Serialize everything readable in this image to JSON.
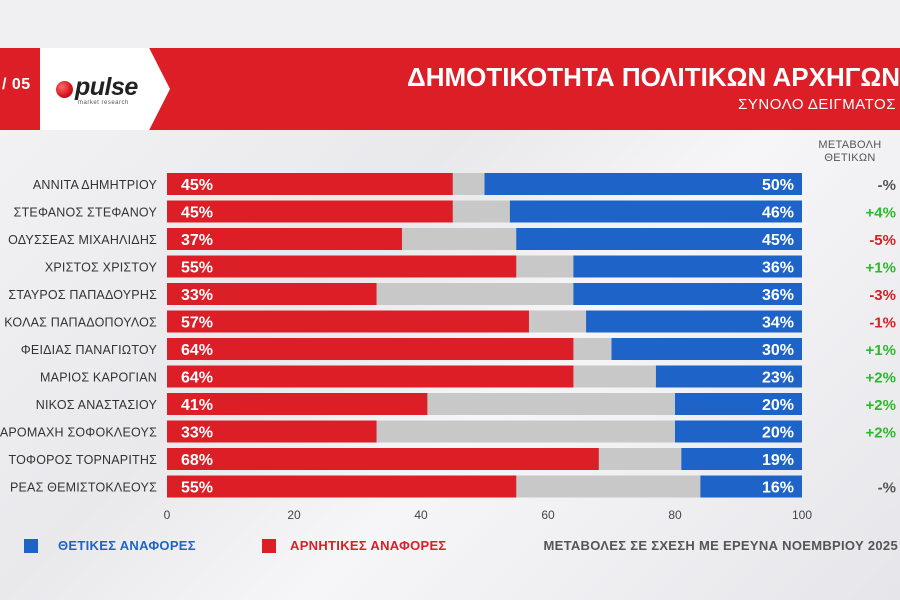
{
  "header": {
    "page_indicator": "/ 05",
    "logo_name": "pulse",
    "logo_tagline": "market research",
    "title": "ΔΗΜΟΤΙΚΟΤΗΤΑ ΠΟΛΙΤΙΚΩΝ ΑΡΧΗΓΩΝ",
    "subtitle": "ΣΥΝΟΛΟ ΔΕΙΓΜΑΤΟΣ",
    "change_header_line1": "ΜΕΤΑΒΟΛΗ",
    "change_header_line2": "ΘΕΤΙΚΩΝ"
  },
  "colors": {
    "negative": "#dc1e26",
    "positive": "#1e64c8",
    "neutral": "#c8c8c8",
    "change_up": "#2db82d",
    "change_down": "#d42020",
    "change_flat": "#555555"
  },
  "chart_data": {
    "type": "bar",
    "orientation": "horizontal",
    "title": "ΔΗΜΟΤΙΚΟΤΗΤΑ ΠΟΛΙΤΙΚΩΝ ΑΡΧΗΓΩΝ",
    "subtitle": "ΣΥΝΟΛΟ ΔΕΙΓΜΑΤΟΣ",
    "xlim": [
      0,
      100
    ],
    "xticks": [
      "0",
      "20",
      "40",
      "60",
      "80",
      "100"
    ],
    "categories": [
      "ΑΝΝΙΤΑ ΔΗΜΗΤΡΙΟΥ",
      "ΣΤΕΦΑΝΟΣ ΣΤΕΦΑΝΟΥ",
      "ΟΔΥΣΣΕΑΣ ΜΙΧΑΗΛΙΔΗΣ",
      "ΧΡΙΣΤΟΣ ΧΡΙΣΤΟΥ",
      "ΣΤΑΥΡΟΣ ΠΑΠΑΔΟΥΡΗΣ",
      "ΚΟΛΑΣ ΠΑΠΑΔΟΠΟΥΛΟΣ",
      "ΦΕΙΔΙΑΣ ΠΑΝΑΓΙΩΤΟΥ",
      "ΜΑΡΙΟΣ ΚΑΡΟΓΙΑΝ",
      "ΝΙΚΟΣ ΑΝΑΣΤΑΣΙΟΥ",
      "ΑΡΟΜΑΧΗ ΣΟΦΟΚΛΕΟΥΣ",
      "ΤΟΦΟΡΟΣ ΤΟΡΝΑΡΙΤΗΣ",
      "ΡΕΑΣ ΘΕΜΙΣΤΟΚΛΕΟΥΣ"
    ],
    "series": [
      {
        "name": "ΑΡΝΗΤΙΚΕΣ ΑΝΑΦΟΡΕΣ",
        "values": [
          45,
          45,
          37,
          55,
          33,
          57,
          64,
          64,
          41,
          33,
          68,
          55
        ]
      },
      {
        "name": "ΘΕΤΙΚΕΣ ΑΝΑΦΟΡΕΣ",
        "values": [
          50,
          46,
          45,
          36,
          36,
          34,
          30,
          23,
          20,
          20,
          19,
          16
        ]
      }
    ],
    "negative_labels": [
      "45%",
      "45%",
      "37%",
      "55%",
      "33%",
      "57%",
      "64%",
      "64%",
      "41%",
      "33%",
      "68%",
      "55%"
    ],
    "positive_labels": [
      "50%",
      "46%",
      "45%",
      "36%",
      "36%",
      "34%",
      "30%",
      "23%",
      "20%",
      "20%",
      "19%",
      "16%"
    ],
    "change_labels": [
      "-%",
      "+4%",
      "-5%",
      "+1%",
      "-3%",
      "-1%",
      "+1%",
      "+2%",
      "+2%",
      "+2%",
      "",
      "-%"
    ],
    "change_direction": [
      "flat",
      "up",
      "down",
      "up",
      "down",
      "down",
      "up",
      "up",
      "up",
      "up",
      "none",
      "flat"
    ]
  },
  "legend": {
    "positive_label": "ΘΕΤΙΚΕΣ ΑΝΑΦΟΡΕΣ",
    "negative_label": "ΑΡΝΗΤΙΚΕΣ ΑΝΑΦΟΡΕΣ"
  },
  "footnote": "ΜΕΤΑΒΟΛΕΣ ΣΕ ΣΧΕΣΗ ΜΕ ΕΡΕΥΝΑ ΝΟΕΜΒΡΙΟΥ 2025"
}
